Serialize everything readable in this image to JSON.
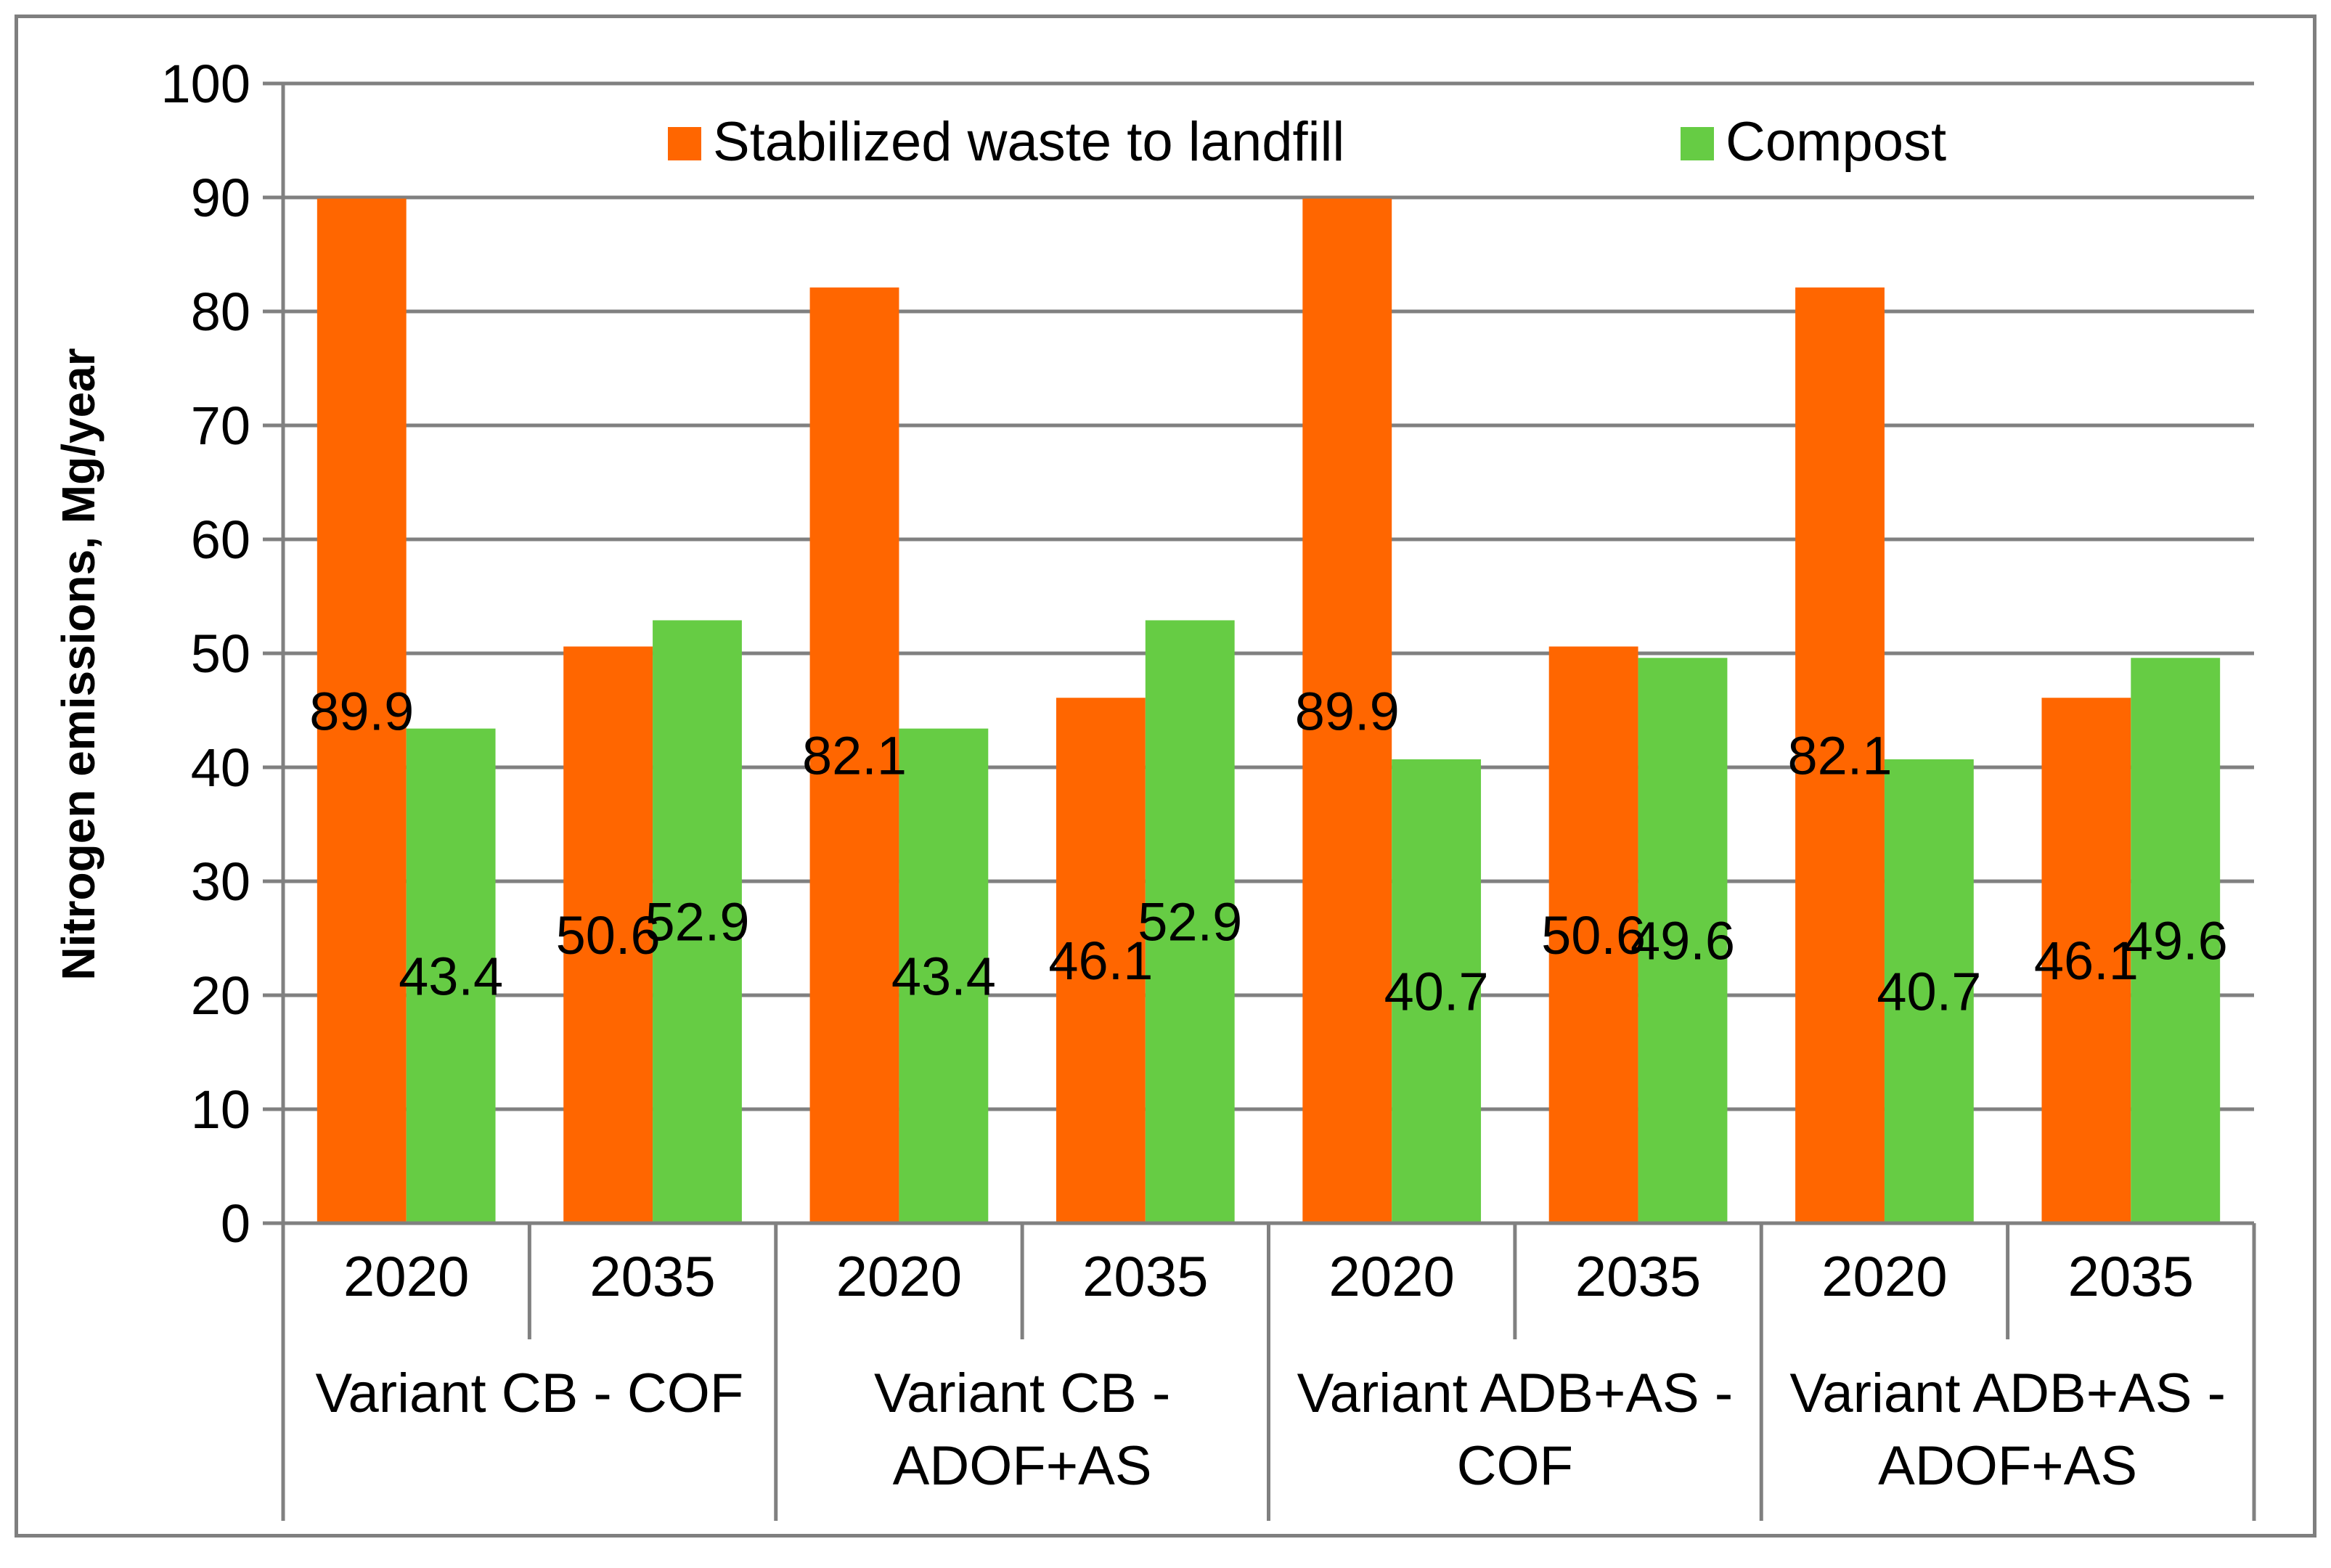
{
  "chart_data": {
    "type": "bar",
    "title": "",
    "ylabel": "Nitrogen emissions, Mg/year",
    "xlabel": "",
    "ylim": [
      0,
      100
    ],
    "ytick_step": 10,
    "grid": true,
    "legend_position": "top-center",
    "groups": [
      {
        "label_lines": [
          "Variant CB - COF"
        ],
        "categories": [
          "2020",
          "2035"
        ]
      },
      {
        "label_lines": [
          "Variant CB -",
          "ADOF+AS"
        ],
        "categories": [
          "2020",
          "2035"
        ]
      },
      {
        "label_lines": [
          "Variant ADB+AS -",
          "COF"
        ],
        "categories": [
          "2020",
          "2035"
        ]
      },
      {
        "label_lines": [
          "Variant ADB+AS -",
          "ADOF+AS"
        ],
        "categories": [
          "2020",
          "2035"
        ]
      }
    ],
    "series": [
      {
        "name": "Stabilized waste to landfill",
        "color": "#ff6600",
        "values": [
          89.9,
          50.6,
          82.1,
          46.1,
          89.9,
          50.6,
          82.1,
          46.1
        ],
        "labels": [
          "89.9",
          "50.6",
          "82.1",
          "46.1",
          "89.9",
          "50.6",
          "82.1",
          "46.1"
        ]
      },
      {
        "name": "Compost",
        "color": "#66cc44",
        "values": [
          43.4,
          52.9,
          43.4,
          52.9,
          40.7,
          49.6,
          40.7,
          49.6
        ],
        "labels": [
          "43.4",
          "52.9",
          "43.4",
          "52.9",
          "40.7",
          "49.6",
          "40.7",
          "49.6"
        ]
      }
    ],
    "gridline_color": "#808080",
    "axis_color": "#808080"
  }
}
